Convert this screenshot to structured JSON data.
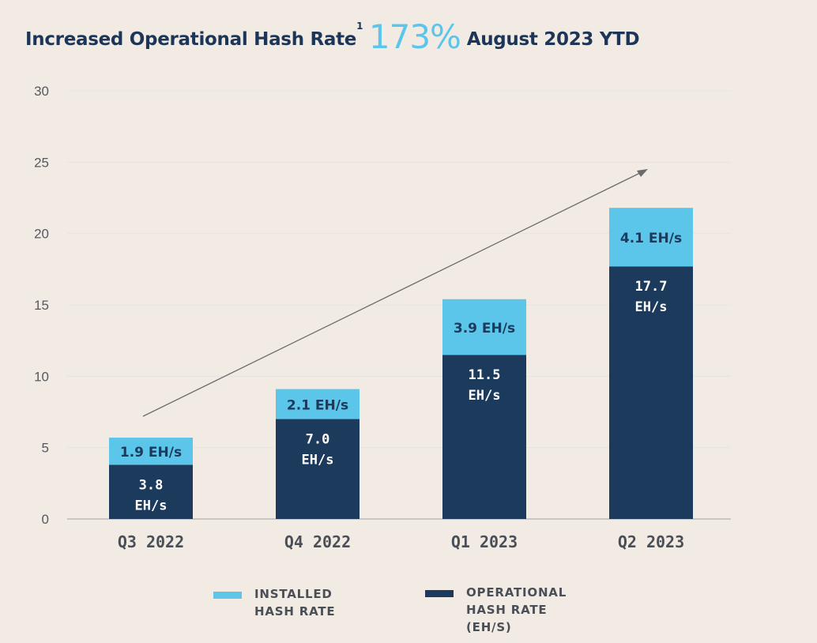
{
  "title": {
    "prefix": "Increased Operational Hash Rate",
    "footnote": "1",
    "highlight": "173%",
    "suffix": "August 2023 YTD"
  },
  "colors": {
    "background": "#f1ebe3",
    "operational": "#1b3a5c",
    "installed": "#5bc5ea",
    "arrow": "#6b6b6b",
    "grid": "#e6e4e1"
  },
  "chart_data": {
    "type": "bar",
    "stacked": true,
    "categories": [
      "Q3 2022",
      "Q4 2022",
      "Q1 2023",
      "Q2 2023"
    ],
    "series": [
      {
        "name": "OPERATIONAL HASH RATE (EH/S)",
        "values": [
          3.8,
          7.0,
          11.5,
          17.7
        ],
        "labels": [
          [
            "3.8",
            "EH/s"
          ],
          [
            "7.0",
            "EH/s"
          ],
          [
            "11.5",
            "EH/s"
          ],
          [
            "17.7",
            "EH/s"
          ]
        ]
      },
      {
        "name": "INSTALLED HASH RATE",
        "values": [
          1.9,
          2.1,
          3.9,
          4.1
        ],
        "labels": [
          "1.9 EH/s",
          "2.1 EH/s",
          "3.9 EH/s",
          "4.1 EH/s"
        ]
      }
    ],
    "yticks": [
      "0",
      "5",
      "10",
      "15",
      "20",
      "25",
      "30"
    ],
    "ylim": [
      0,
      30
    ],
    "grid": true,
    "trend_arrow": true,
    "legend": {
      "position": "bottom",
      "items": [
        {
          "lines": [
            "INSTALLED",
            "HASH RATE"
          ]
        },
        {
          "lines": [
            "OPERATIONAL",
            "HASH RATE",
            "(EH/S)"
          ]
        }
      ]
    }
  }
}
